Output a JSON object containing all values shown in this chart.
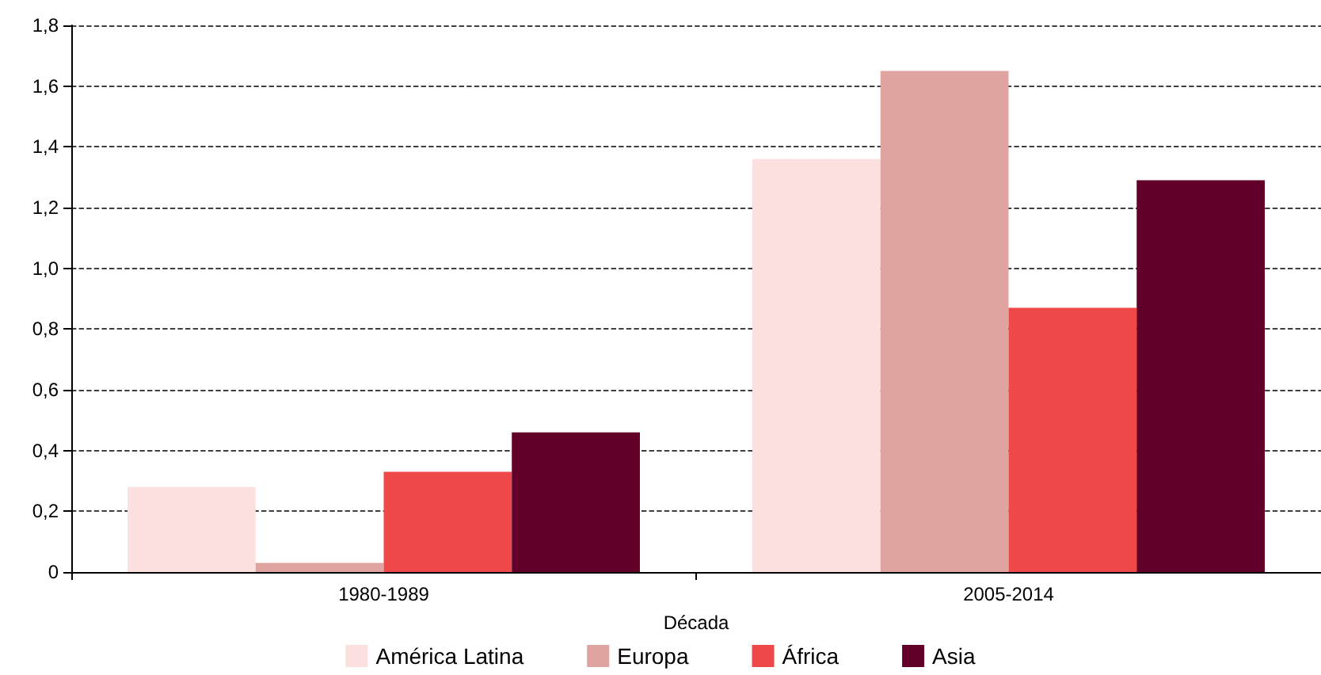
{
  "chart_data": {
    "type": "bar",
    "xlabel": "Década",
    "categories": [
      "1980-1989",
      "2005-2014"
    ],
    "series": [
      {
        "name": "América Latina",
        "color": "#fce0e0",
        "values": [
          0.28,
          1.36
        ]
      },
      {
        "name": "Europa",
        "color": "#e0a4a0",
        "values": [
          0.03,
          1.65
        ]
      },
      {
        "name": "África",
        "color": "#ef4848",
        "values": [
          0.33,
          0.87
        ]
      },
      {
        "name": "Asia",
        "color": "#62002a",
        "values": [
          0.46,
          1.29
        ]
      }
    ],
    "ylim": [
      0,
      1.8
    ],
    "yticks": [
      0,
      {
        "value": 0.2,
        "label": "0,2"
      },
      {
        "value": 0.4,
        "label": "0,4"
      },
      {
        "value": 0.6,
        "label": "0,6"
      },
      {
        "value": 0.8,
        "label": "0,8"
      },
      {
        "value": 1.0,
        "label": "1,0"
      },
      {
        "value": 1.2,
        "label": "1,2"
      },
      {
        "value": 1.4,
        "label": "1,4"
      },
      {
        "value": 1.6,
        "label": "1,6"
      },
      {
        "value": 1.8,
        "label": "1,8"
      }
    ],
    "grid": "y",
    "legend": "bottom"
  }
}
